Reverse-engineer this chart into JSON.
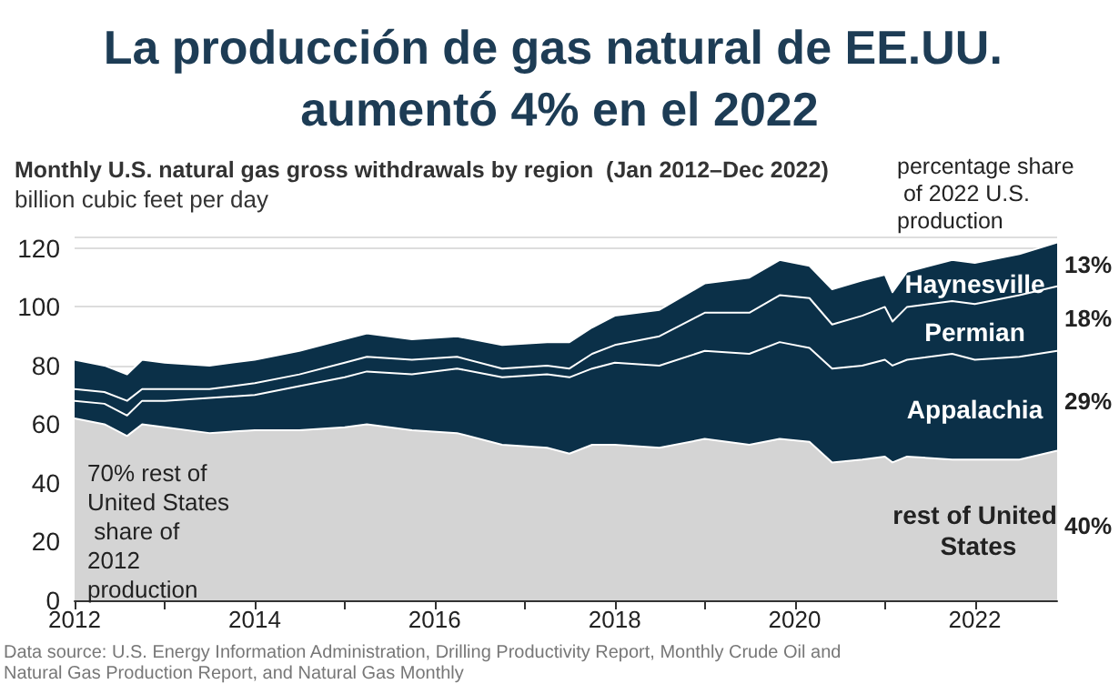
{
  "chart_data": {
    "type": "area",
    "stacked": true,
    "title": "La producción de gas natural de EE.UU. aumentó 4% en el 2022",
    "subtitle": "Monthly U.S. natural gas gross withdrawals by region  (Jan 2012–Dec 2022)",
    "ylabel": "billion cubic feet per day",
    "annotations": [
      "percentage share of 2022 U.S. production",
      "13%",
      "18%",
      "29%",
      "40%",
      "70% rest of United States share of 2012 production",
      "Data source: U.S. Energy Information Administration, Drilling Productivity Report, Monthly Crude Oil and Natural Gas Production Report, and Natural Gas Monthly"
    ],
    "x": [
      "2012-01",
      "2012-05",
      "2012-08",
      "2012-10",
      "2013-01",
      "2013-07",
      "2014-01",
      "2014-07",
      "2015-01",
      "2015-04",
      "2015-10",
      "2016-04",
      "2016-10",
      "2017-04",
      "2017-07",
      "2017-10",
      "2018-01",
      "2018-07",
      "2019-01",
      "2019-07",
      "2019-11",
      "2020-03",
      "2020-06",
      "2020-10",
      "2021-01",
      "2021-02",
      "2021-04",
      "2021-10",
      "2022-01",
      "2022-07",
      "2022-12"
    ],
    "series": [
      {
        "name": "rest of United States",
        "color": "#d4d4d4",
        "values": [
          62,
          60,
          56,
          60,
          59,
          57,
          58,
          58,
          59,
          60,
          58,
          57,
          53,
          52,
          50,
          53,
          53,
          52,
          55,
          53,
          55,
          54,
          47,
          48,
          49,
          47,
          49,
          48,
          48,
          48,
          51
        ]
      },
      {
        "name": "Appalachia",
        "color": "#0b3048",
        "values": [
          6,
          7,
          7,
          8,
          9,
          12,
          12,
          15,
          17,
          18,
          19,
          22,
          23,
          25,
          26,
          26,
          28,
          28,
          30,
          31,
          33,
          32,
          32,
          32,
          33,
          33,
          33,
          36,
          34,
          35,
          34
        ]
      },
      {
        "name": "Permian",
        "color": "#0b3048",
        "values": [
          4,
          4,
          5,
          4,
          4,
          3,
          4,
          4,
          5,
          5,
          5,
          4,
          3,
          3,
          3,
          5,
          6,
          10,
          13,
          14,
          16,
          17,
          15,
          17,
          18,
          15,
          18,
          18,
          19,
          21,
          22
        ]
      },
      {
        "name": "Haynesville",
        "color": "#0b3048",
        "values": [
          10,
          9,
          9,
          10,
          9,
          8,
          8,
          8,
          8,
          8,
          7,
          7,
          8,
          8,
          9,
          9,
          10,
          9,
          10,
          12,
          12,
          11,
          12,
          12,
          11,
          10,
          12,
          14,
          14,
          14,
          15
        ]
      }
    ],
    "xlim": [
      "2012-01",
      "2022-12"
    ],
    "xticks": [
      {
        "value": "2012",
        "label": "2012"
      },
      {
        "value": "2013",
        "label": null
      },
      {
        "value": "2014",
        "label": "2014"
      },
      {
        "value": "2015",
        "label": null
      },
      {
        "value": "2016",
        "label": "2016"
      },
      {
        "value": "2017",
        "label": null
      },
      {
        "value": "2018",
        "label": "2018"
      },
      {
        "value": "2019",
        "label": null
      },
      {
        "value": "2020",
        "label": "2020"
      },
      {
        "value": "2021",
        "label": null
      },
      {
        "value": "2022",
        "label": "2022"
      }
    ],
    "ylim": [
      0,
      124
    ],
    "yticks": [
      0,
      20,
      40,
      60,
      80,
      100,
      120
    ],
    "grid": "y"
  }
}
